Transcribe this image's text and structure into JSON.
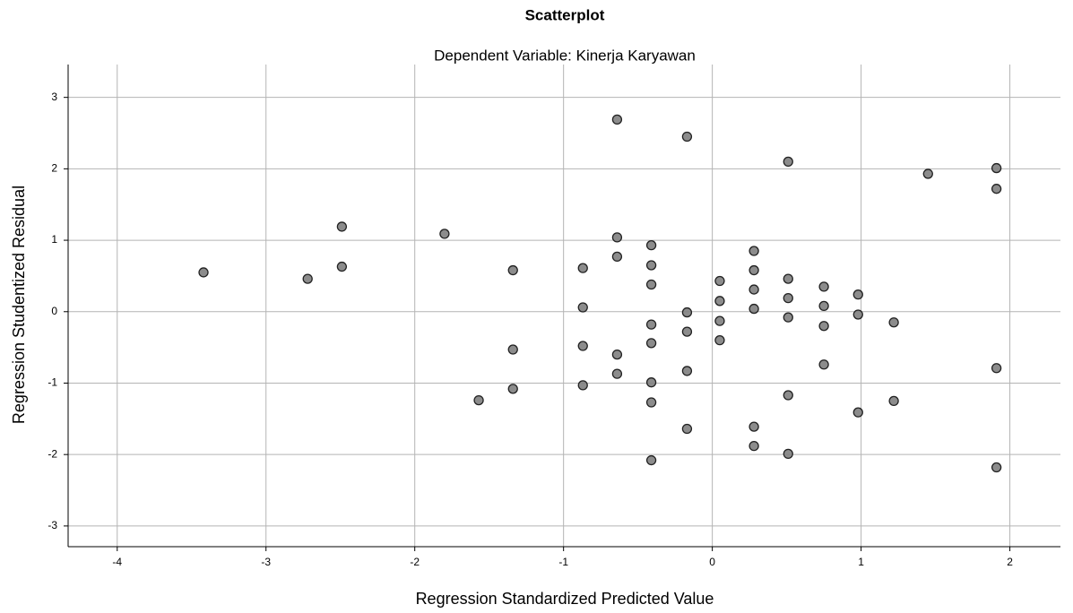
{
  "chart_data": {
    "type": "scatter",
    "title": "Scatterplot",
    "subtitle": "Dependent Variable: Kinerja Karyawan",
    "x_label": "Regression Standardized Predicted Value",
    "y_label": "Regression Studentized Residual",
    "x": [
      -3.42,
      -2.72,
      -2.49,
      -2.49,
      -1.8,
      -1.57,
      -1.34,
      -1.34,
      -1.34,
      -0.87,
      -0.87,
      -0.87,
      -0.87,
      -0.64,
      -0.64,
      -0.64,
      -0.64,
      -0.64,
      -0.41,
      -0.41,
      -0.41,
      -0.41,
      -0.41,
      -0.41,
      -0.41,
      -0.41,
      -0.17,
      -0.17,
      -0.17,
      -0.17,
      -0.17,
      0.05,
      0.05,
      0.05,
      0.05,
      0.28,
      0.28,
      0.28,
      0.28,
      0.28,
      0.28,
      0.51,
      0.51,
      0.51,
      0.51,
      0.51,
      0.51,
      0.75,
      0.75,
      0.75,
      0.75,
      0.98,
      0.98,
      0.98,
      1.22,
      1.22,
      1.45,
      1.91,
      1.91,
      1.91,
      1.91
    ],
    "y": [
      0.55,
      0.46,
      1.19,
      0.63,
      1.09,
      -1.24,
      0.58,
      -0.53,
      -1.08,
      0.61,
      0.06,
      -0.48,
      -1.03,
      2.69,
      1.04,
      0.77,
      -0.6,
      -0.87,
      0.93,
      0.65,
      0.38,
      -0.18,
      -0.44,
      -0.99,
      -1.27,
      -2.08,
      2.45,
      -0.01,
      -0.28,
      -0.83,
      -1.64,
      0.43,
      0.15,
      -0.13,
      -0.4,
      0.85,
      0.58,
      0.31,
      0.04,
      -1.61,
      -1.88,
      2.1,
      0.46,
      0.19,
      -0.08,
      -1.17,
      -1.99,
      0.35,
      0.08,
      -0.2,
      -0.74,
      0.24,
      -0.04,
      -1.41,
      -0.15,
      -1.25,
      1.93,
      2.01,
      1.72,
      -0.79,
      -2.18
    ],
    "color": "#7f7f7f",
    "xlim": [
      -4.33,
      2.34
    ],
    "ylim": [
      -3.29,
      3.46
    ],
    "xticks": [
      -4,
      -3,
      -2,
      -1,
      0,
      1,
      2
    ],
    "yticks": [
      -3,
      -2,
      -1,
      0,
      1,
      2,
      3
    ],
    "grid": true
  }
}
